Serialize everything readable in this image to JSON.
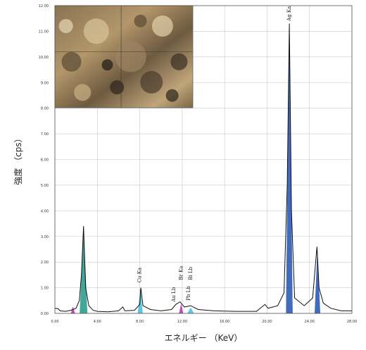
{
  "chart_data": {
    "type": "line",
    "title": "",
    "xlabel": "エネルギー （KeV）",
    "ylabel": "強度 （cps）",
    "xlim": [
      0,
      28
    ],
    "ylim": [
      0,
      12
    ],
    "x_ticks": [
      "0.00",
      "4.00",
      "8.00",
      "12.00",
      "16.00",
      "20.00",
      "24.00",
      "28.00"
    ],
    "y_ticks": [
      "0.00",
      "1.00",
      "2.00",
      "3.00",
      "4.00",
      "5.00",
      "6.00",
      "7.00",
      "8.00",
      "9.00",
      "10.00",
      "11.00",
      "12.00"
    ],
    "grid": true,
    "series": [
      {
        "type": "spectrum",
        "color": "#111111",
        "points": [
          [
            0.0,
            0.2
          ],
          [
            0.3,
            0.18
          ],
          [
            0.5,
            0.1
          ],
          [
            1.0,
            0.08
          ],
          [
            1.5,
            0.12
          ],
          [
            2.0,
            0.2
          ],
          [
            2.3,
            0.5
          ],
          [
            2.5,
            1.5
          ],
          [
            2.7,
            3.4
          ],
          [
            2.9,
            1.0
          ],
          [
            3.2,
            0.3
          ],
          [
            3.6,
            0.12
          ],
          [
            4.0,
            0.08
          ],
          [
            5.0,
            0.06
          ],
          [
            6.0,
            0.1
          ],
          [
            6.4,
            0.25
          ],
          [
            6.6,
            0.1
          ],
          [
            7.5,
            0.12
          ],
          [
            8.0,
            0.35
          ],
          [
            8.1,
            1.0
          ],
          [
            8.3,
            0.3
          ],
          [
            9.0,
            0.15
          ],
          [
            10.0,
            0.1
          ],
          [
            11.0,
            0.15
          ],
          [
            11.4,
            0.35
          ],
          [
            11.8,
            0.45
          ],
          [
            12.2,
            0.25
          ],
          [
            12.8,
            0.3
          ],
          [
            13.5,
            0.15
          ],
          [
            15.0,
            0.1
          ],
          [
            17.0,
            0.08
          ],
          [
            19.0,
            0.08
          ],
          [
            19.8,
            0.35
          ],
          [
            20.1,
            0.2
          ],
          [
            21.0,
            0.3
          ],
          [
            21.6,
            0.8
          ],
          [
            21.9,
            5.0
          ],
          [
            22.1,
            11.3
          ],
          [
            22.3,
            4.0
          ],
          [
            22.6,
            0.6
          ],
          [
            23.5,
            0.3
          ],
          [
            24.3,
            0.6
          ],
          [
            24.7,
            2.6
          ],
          [
            24.9,
            1.0
          ],
          [
            25.3,
            0.4
          ],
          [
            26.0,
            0.2
          ],
          [
            27.0,
            0.1
          ],
          [
            28.0,
            0.1
          ]
        ]
      }
    ],
    "filled_peaks": [
      {
        "color": "#2d9e8f",
        "center": 2.7,
        "width": 0.35,
        "height": 3.2
      },
      {
        "color": "#4fc1d9",
        "center": 8.05,
        "width": 0.22,
        "height": 0.95
      },
      {
        "color": "#b03ea8",
        "center": 11.9,
        "width": 0.18,
        "height": 0.35
      },
      {
        "color": "#4fc1d9",
        "center": 12.8,
        "width": 0.3,
        "height": 0.22
      },
      {
        "color": "#b03ea8",
        "center": 1.7,
        "width": 0.18,
        "height": 0.25
      },
      {
        "color": "#2e5bb5",
        "center": 22.1,
        "width": 0.3,
        "height": 11.2
      },
      {
        "color": "#2e5bb5",
        "center": 24.75,
        "width": 0.25,
        "height": 2.4
      }
    ],
    "annotations": [
      {
        "text": "Ag Ka",
        "x": 22.1,
        "y": 11.4
      },
      {
        "text": "Cu Ka",
        "x": 8.0,
        "y": 1.2
      },
      {
        "text": "Br Ka",
        "x": 11.9,
        "y": 1.3
      },
      {
        "text": "Bi Lb",
        "x": 12.8,
        "y": 1.3
      },
      {
        "text": "Au Lb",
        "x": 11.2,
        "y": 0.45
      },
      {
        "text": "Pb Lb",
        "x": 12.6,
        "y": 0.5
      }
    ]
  },
  "inset_image": {
    "description_icon": "micrograph-image"
  }
}
